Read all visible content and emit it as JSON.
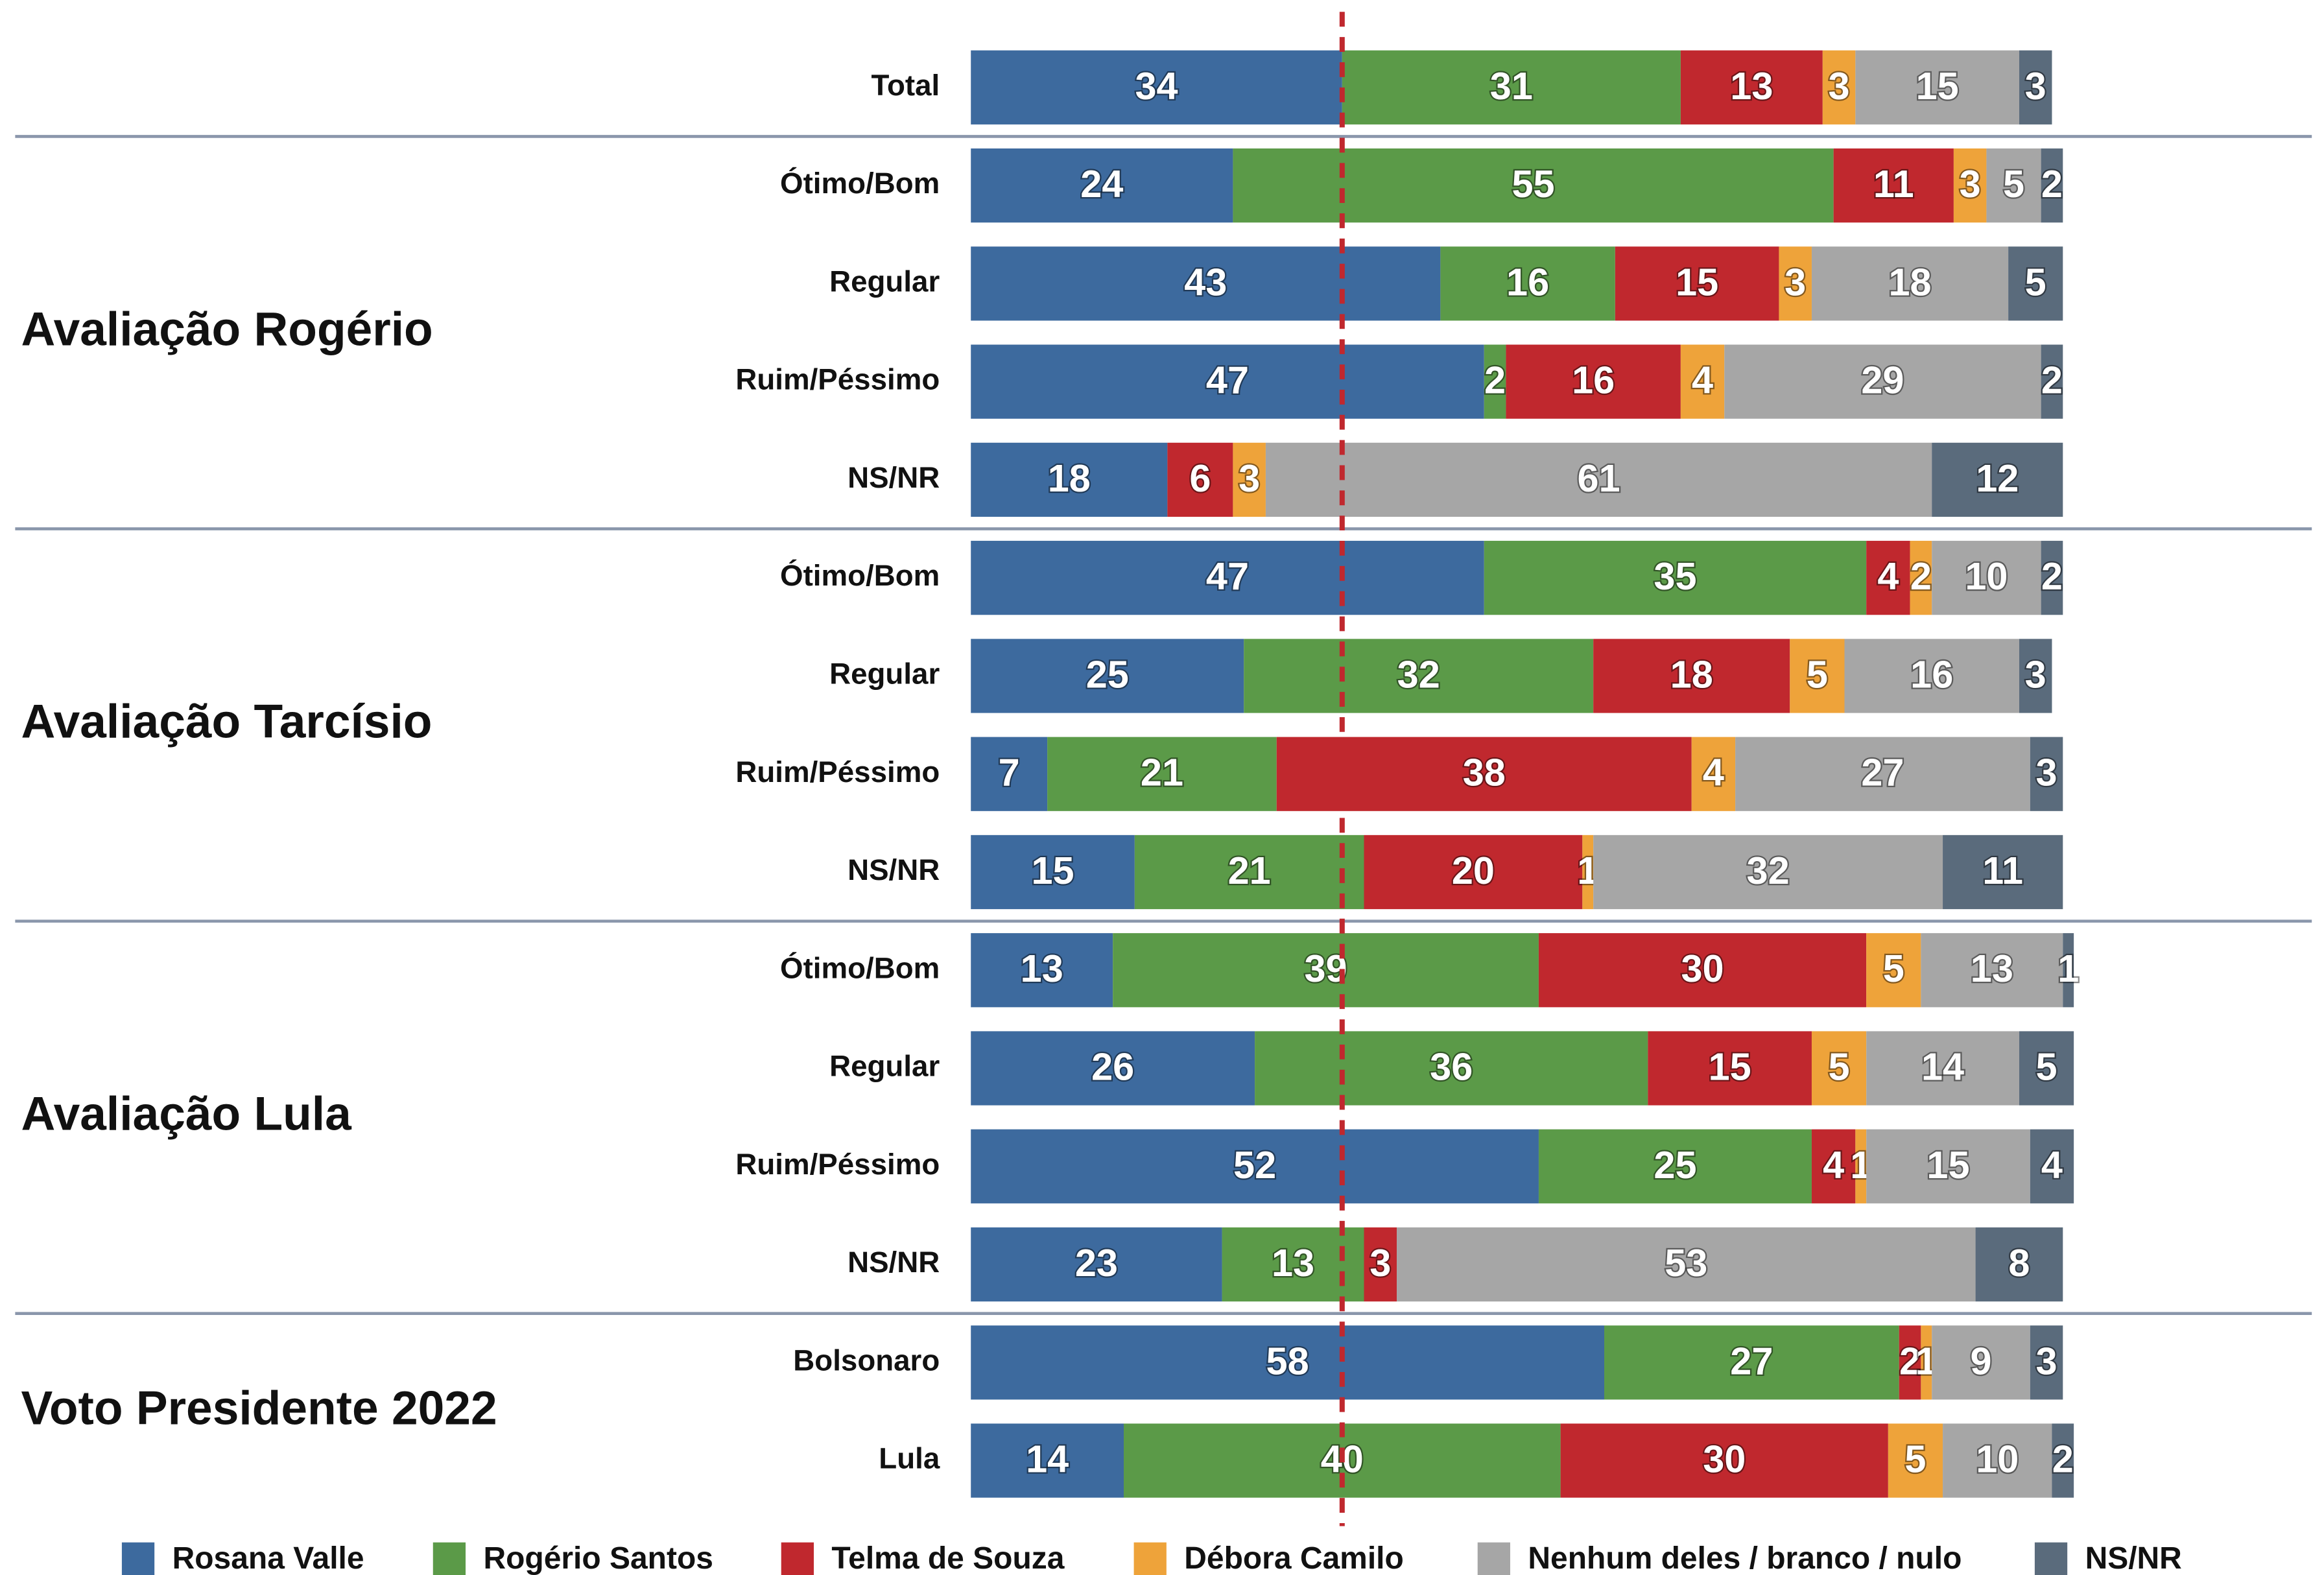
{
  "chart_data": {
    "type": "stacked-bar-horizontal",
    "xlim": [
      0,
      100
    ],
    "reference_x": 34,
    "groups": [
      {
        "categories": [
          "Total"
        ]
      },
      {
        "name": "Avaliação Rogério",
        "categories": [
          "Ótimo/Bom",
          "Regular",
          "Ruim/Péssimo",
          "NS/NR"
        ]
      },
      {
        "name": "Avaliação Tarcísio",
        "categories": [
          "Ótimo/Bom",
          "Regular",
          "Ruim/Péssimo",
          "NS/NR"
        ]
      },
      {
        "name": "Avaliação Lula",
        "categories": [
          "Ótimo/Bom",
          "Regular",
          "Ruim/Péssimo",
          "NS/NR"
        ]
      },
      {
        "name": "Voto Presidente 2022",
        "categories": [
          "Bolsonaro",
          "Lula"
        ]
      }
    ],
    "series": [
      {
        "name": "Rosana Valle",
        "color": "#3d6a9e",
        "values": [
          34,
          24,
          43,
          47,
          18,
          47,
          25,
          7,
          15,
          13,
          26,
          52,
          23,
          58,
          14
        ]
      },
      {
        "name": "Rogério Santos",
        "color": "#5b9a48",
        "values": [
          31,
          55,
          16,
          2,
          null,
          35,
          32,
          21,
          21,
          39,
          36,
          25,
          13,
          27,
          40
        ]
      },
      {
        "name": "Telma de Souza",
        "color": "#c0282e",
        "values": [
          13,
          11,
          15,
          16,
          6,
          4,
          18,
          38,
          20,
          30,
          15,
          4,
          3,
          2,
          30
        ]
      },
      {
        "name": "Débora Camilo",
        "color": "#eea33a",
        "values": [
          3,
          3,
          3,
          4,
          3,
          2,
          5,
          4,
          1,
          5,
          5,
          1,
          null,
          1,
          5
        ]
      },
      {
        "name": "Nenhum deles / branco / nulo",
        "color": "#a6a6a6",
        "values": [
          15,
          5,
          18,
          29,
          61,
          10,
          16,
          27,
          32,
          13,
          14,
          15,
          53,
          9,
          10
        ]
      },
      {
        "name": "NS/NR",
        "color": "#5a6b7c",
        "values": [
          3,
          2,
          5,
          2,
          12,
          2,
          3,
          3,
          11,
          1,
          5,
          4,
          8,
          3,
          2
        ]
      }
    ]
  }
}
